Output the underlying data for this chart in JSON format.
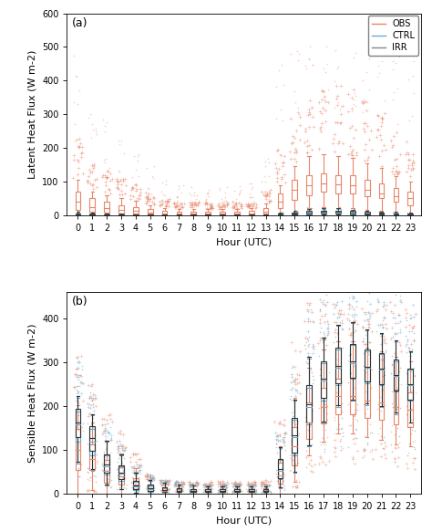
{
  "title_a": "(a)",
  "title_b": "(b)",
  "ylabel_a": "Latent Heat Flux (W m-2)",
  "ylabel_b": "Sensible Heat Flux (W m-2)",
  "xlabel": "Hour (UTC)",
  "hours": [
    0,
    1,
    2,
    3,
    4,
    5,
    6,
    7,
    8,
    9,
    10,
    11,
    12,
    13,
    14,
    15,
    16,
    17,
    18,
    19,
    20,
    21,
    22,
    23
  ],
  "ylim_a": [
    0,
    600
  ],
  "ylim_b": [
    0,
    460
  ],
  "yticks_a": [
    0,
    100,
    200,
    300,
    400,
    500,
    600
  ],
  "yticks_b": [
    0,
    100,
    200,
    300,
    400
  ],
  "color_obs": "#E8866A",
  "color_ctrl": "#6AADCF",
  "color_irr": "#888888",
  "color_irr_box": "#333333",
  "figsize": [
    4.74,
    5.83
  ],
  "dpi": 100,
  "lhf_obs_q1": [
    15,
    10,
    8,
    6,
    5,
    4,
    3,
    3,
    3,
    3,
    3,
    3,
    3,
    5,
    20,
    45,
    60,
    70,
    65,
    65,
    55,
    50,
    40,
    30
  ],
  "lhf_obs_med": [
    40,
    25,
    20,
    15,
    12,
    8,
    6,
    5,
    5,
    5,
    5,
    5,
    5,
    10,
    40,
    75,
    90,
    95,
    92,
    90,
    75,
    65,
    55,
    50
  ],
  "lhf_obs_q3": [
    70,
    50,
    40,
    30,
    25,
    18,
    12,
    10,
    10,
    10,
    10,
    10,
    12,
    20,
    65,
    105,
    120,
    125,
    120,
    118,
    105,
    95,
    80,
    70
  ],
  "lhf_obs_whislo": [
    0,
    0,
    0,
    0,
    0,
    0,
    0,
    0,
    0,
    0,
    0,
    0,
    0,
    0,
    0,
    10,
    20,
    25,
    22,
    22,
    15,
    12,
    8,
    5
  ],
  "lhf_obs_whishi": [
    105,
    70,
    60,
    50,
    42,
    30,
    22,
    18,
    18,
    18,
    18,
    18,
    20,
    35,
    90,
    145,
    175,
    180,
    175,
    170,
    155,
    140,
    115,
    100
  ],
  "lhf_ctrl_q1": [
    1,
    1,
    1,
    1,
    1,
    1,
    1,
    1,
    1,
    1,
    1,
    1,
    1,
    1,
    1,
    2,
    3,
    4,
    4,
    3,
    2,
    2,
    2,
    1
  ],
  "lhf_ctrl_med": [
    2,
    2,
    1,
    1,
    1,
    1,
    1,
    1,
    1,
    1,
    1,
    1,
    1,
    1,
    2,
    4,
    6,
    7,
    7,
    5,
    4,
    4,
    3,
    2
  ],
  "lhf_ctrl_q3": [
    5,
    4,
    3,
    2,
    2,
    2,
    2,
    2,
    2,
    2,
    2,
    2,
    2,
    2,
    4,
    7,
    10,
    12,
    12,
    10,
    8,
    7,
    5,
    4
  ],
  "lhf_ctrl_whislo": [
    0,
    0,
    0,
    0,
    0,
    0,
    0,
    0,
    0,
    0,
    0,
    0,
    0,
    0,
    0,
    0,
    1,
    1,
    1,
    1,
    0,
    0,
    0,
    0
  ],
  "lhf_ctrl_whishi": [
    8,
    6,
    5,
    4,
    3,
    3,
    3,
    3,
    3,
    3,
    3,
    3,
    3,
    3,
    6,
    11,
    16,
    18,
    18,
    15,
    12,
    10,
    8,
    7
  ],
  "lhf_irr_q1": [
    1,
    1,
    1,
    1,
    1,
    1,
    1,
    1,
    1,
    1,
    1,
    1,
    1,
    1,
    1,
    2,
    3,
    4,
    4,
    3,
    2,
    2,
    2,
    1
  ],
  "lhf_irr_med": [
    3,
    2,
    1,
    1,
    1,
    1,
    1,
    1,
    1,
    1,
    1,
    1,
    1,
    1,
    2,
    4,
    7,
    9,
    9,
    7,
    5,
    4,
    3,
    2
  ],
  "lhf_irr_q3": [
    6,
    4,
    3,
    2,
    2,
    2,
    2,
    2,
    2,
    2,
    2,
    2,
    2,
    2,
    4,
    8,
    12,
    14,
    14,
    12,
    9,
    8,
    6,
    5
  ],
  "lhf_irr_whislo": [
    0,
    0,
    0,
    0,
    0,
    0,
    0,
    0,
    0,
    0,
    0,
    0,
    0,
    0,
    0,
    0,
    1,
    1,
    1,
    1,
    0,
    0,
    0,
    0
  ],
  "lhf_irr_whishi": [
    10,
    7,
    5,
    4,
    3,
    3,
    3,
    3,
    3,
    3,
    3,
    3,
    3,
    3,
    7,
    13,
    19,
    21,
    20,
    17,
    13,
    11,
    9,
    7
  ],
  "shf_obs_q1": [
    55,
    55,
    25,
    20,
    10,
    6,
    4,
    4,
    4,
    4,
    4,
    4,
    4,
    4,
    22,
    65,
    125,
    160,
    182,
    182,
    172,
    168,
    158,
    152
  ],
  "shf_obs_med": [
    100,
    80,
    52,
    40,
    20,
    10,
    7,
    7,
    7,
    7,
    7,
    7,
    7,
    7,
    42,
    108,
    162,
    198,
    222,
    222,
    212,
    208,
    198,
    192
  ],
  "shf_obs_q3": [
    148,
    112,
    78,
    60,
    35,
    18,
    12,
    10,
    10,
    10,
    10,
    10,
    10,
    13,
    70,
    152,
    208,
    242,
    262,
    265,
    255,
    250,
    238,
    230
  ],
  "shf_obs_whislo": [
    0,
    8,
    0,
    0,
    0,
    0,
    0,
    0,
    0,
    0,
    0,
    0,
    0,
    0,
    0,
    28,
    88,
    118,
    138,
    138,
    128,
    123,
    113,
    108
  ],
  "shf_obs_whishi": [
    202,
    162,
    118,
    92,
    58,
    30,
    20,
    18,
    18,
    18,
    18,
    18,
    18,
    20,
    108,
    218,
    288,
    328,
    348,
    348,
    332,
    325,
    312,
    302
  ],
  "shf_ctrl_q1": [
    118,
    88,
    43,
    30,
    8,
    5,
    4,
    4,
    4,
    4,
    4,
    4,
    4,
    4,
    33,
    88,
    158,
    212,
    248,
    262,
    252,
    248,
    232,
    212
  ],
  "shf_ctrl_med": [
    158,
    118,
    63,
    46,
    16,
    10,
    8,
    6,
    6,
    6,
    6,
    6,
    6,
    6,
    53,
    128,
    198,
    258,
    288,
    298,
    288,
    282,
    268,
    248
  ],
  "shf_ctrl_q3": [
    188,
    148,
    88,
    63,
    28,
    18,
    14,
    12,
    10,
    10,
    10,
    10,
    10,
    10,
    76,
    168,
    242,
    298,
    328,
    338,
    325,
    318,
    302,
    282
  ],
  "shf_ctrl_whislo": [
    68,
    53,
    18,
    10,
    2,
    1,
    1,
    1,
    1,
    1,
    1,
    1,
    1,
    1,
    13,
    48,
    108,
    162,
    198,
    212,
    202,
    198,
    182,
    162
  ],
  "shf_ctrl_whishi": [
    218,
    178,
    118,
    88,
    46,
    30,
    24,
    20,
    18,
    16,
    16,
    16,
    16,
    16,
    103,
    212,
    308,
    352,
    382,
    388,
    372,
    365,
    348,
    322
  ],
  "shf_irr_q1": [
    128,
    98,
    48,
    33,
    10,
    6,
    4,
    4,
    4,
    4,
    4,
    4,
    4,
    4,
    36,
    93,
    163,
    218,
    252,
    265,
    255,
    250,
    235,
    215
  ],
  "shf_irr_med": [
    163,
    126,
    66,
    48,
    18,
    12,
    9,
    7,
    7,
    6,
    6,
    6,
    6,
    6,
    56,
    133,
    203,
    262,
    292,
    302,
    290,
    285,
    270,
    250
  ],
  "shf_irr_q3": [
    193,
    153,
    90,
    65,
    30,
    20,
    14,
    12,
    11,
    11,
    11,
    11,
    11,
    11,
    80,
    172,
    248,
    302,
    332,
    341,
    329,
    321,
    305,
    284
  ],
  "shf_irr_whislo": [
    73,
    56,
    20,
    11,
    2,
    1,
    1,
    1,
    1,
    1,
    1,
    1,
    1,
    1,
    14,
    50,
    111,
    165,
    202,
    215,
    205,
    200,
    185,
    163
  ],
  "shf_irr_whishi": [
    222,
    181,
    120,
    89,
    48,
    32,
    25,
    21,
    19,
    17,
    17,
    17,
    17,
    17,
    106,
    215,
    312,
    355,
    385,
    390,
    375,
    367,
    349,
    324
  ]
}
